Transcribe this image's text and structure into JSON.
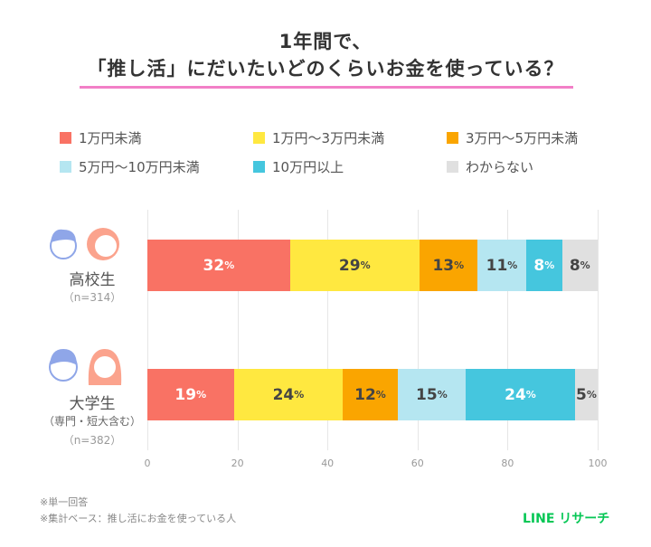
{
  "title_line1": "1年間で、",
  "title_line2": "「推し活」にだいたいどのくらいお金を使っている？",
  "legend": [
    {
      "label": "1万円未満",
      "color": "#F97264"
    },
    {
      "label": "1万円〜3万円未満",
      "color": "#FFE840"
    },
    {
      "label": "3万円〜5万円未満",
      "color": "#FAA500"
    },
    {
      "label": "5万円〜10万円未満",
      "color": "#B5E6F1"
    },
    {
      "label": "10万円以上",
      "color": "#45C6DE"
    },
    {
      "label": "わからない",
      "color": "#E0E0E0"
    }
  ],
  "groups": [
    {
      "name": "高校生",
      "sub": "",
      "n": "（n=314）"
    },
    {
      "name": "大学生",
      "sub": "（専門・短大含む）",
      "n": "（n=382）"
    }
  ],
  "chart_data": {
    "type": "bar",
    "orientation": "horizontal-stacked",
    "categories": [
      "高校生",
      "大学生"
    ],
    "series": [
      {
        "name": "1万円未満",
        "values": [
          32,
          19
        ]
      },
      {
        "name": "1万円〜3万円未満",
        "values": [
          29,
          24
        ]
      },
      {
        "name": "3万円〜5万円未満",
        "values": [
          13,
          12
        ]
      },
      {
        "name": "5万円〜10万円未満",
        "values": [
          11,
          15
        ]
      },
      {
        "name": "10万円以上",
        "values": [
          8,
          24
        ]
      },
      {
        "name": "わからない",
        "values": [
          8,
          5
        ]
      }
    ],
    "label_colors": [
      "#ffffff",
      "#444444",
      "#444444",
      "#444444",
      "#ffffff",
      "#444444"
    ],
    "unit": "%",
    "xlim": [
      0,
      100
    ],
    "xticks": [
      "0",
      "20",
      "40",
      "60",
      "80",
      "100"
    ],
    "grid": true,
    "legend_position": "top"
  },
  "notes": [
    "※単一回答",
    "※集計ベース：推し活にお金を使っている人"
  ],
  "logo": "LINE リサーチ"
}
